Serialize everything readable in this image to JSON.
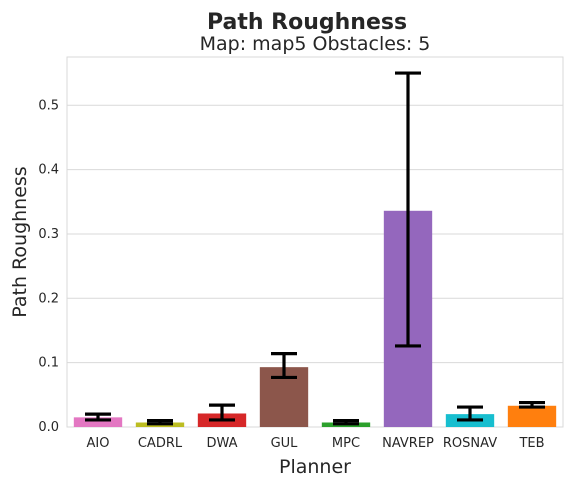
{
  "chart_data": {
    "type": "bar",
    "title": "Path Roughness",
    "subtitle": "Map: map5 Obstacles: 5",
    "xlabel": "Planner",
    "ylabel": "Path Roughness",
    "ylim": [
      0,
      0.575
    ],
    "yticks": [
      "0.0",
      "0.1",
      "0.2",
      "0.3",
      "0.4",
      "0.5"
    ],
    "grid": true,
    "categories": [
      "AIO",
      "CADRL",
      "DWA",
      "GUL",
      "MPC",
      "NAVREP",
      "ROSNAV",
      "TEB"
    ],
    "values": [
      0.015,
      0.007,
      0.021,
      0.093,
      0.007,
      0.336,
      0.02,
      0.033
    ],
    "error_low": [
      0.011,
      0.005,
      0.011,
      0.077,
      0.005,
      0.126,
      0.011,
      0.031
    ],
    "error_high": [
      0.02,
      0.01,
      0.034,
      0.114,
      0.01,
      0.55,
      0.031,
      0.038
    ],
    "colors": [
      "#e377c2",
      "#bcbd22",
      "#d62728",
      "#8c564b",
      "#2ca02c",
      "#9467bd",
      "#17becf",
      "#ff7f0e"
    ]
  }
}
